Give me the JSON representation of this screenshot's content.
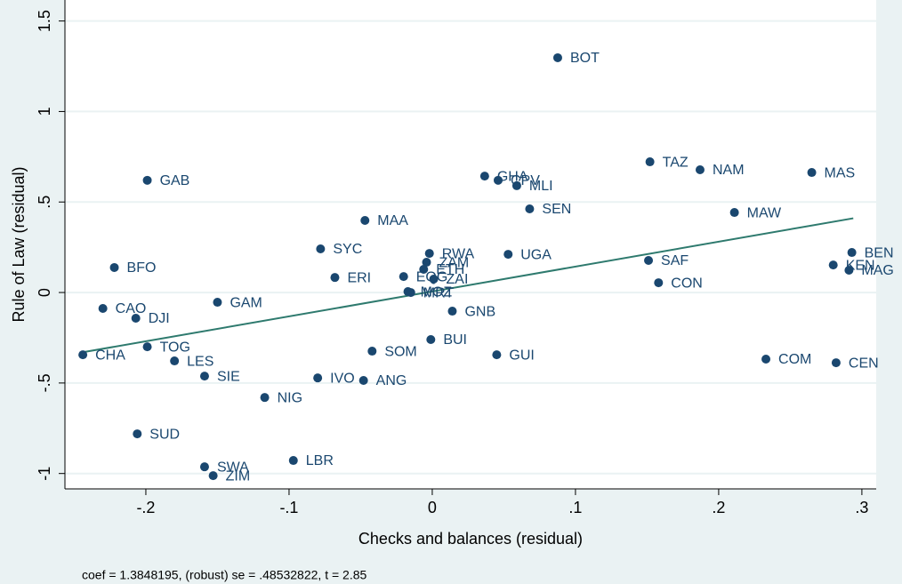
{
  "chart_data": {
    "type": "scatter",
    "x_label": "Checks and balances (residual)",
    "y_label": "Rule of Law (residual)",
    "note": "coef = 1.3848195, (robust) se = .48532822, t = 2.85",
    "color": "#1a476f",
    "fit_color": "#2e7a6e",
    "grid": true,
    "xlim": [
      -0.2565,
      0.31
    ],
    "ylim": [
      -1.085,
      1.616
    ],
    "xticks": [
      {
        "value": -0.2,
        "label": "-.2"
      },
      {
        "value": -0.1,
        "label": "-.1"
      },
      0,
      {
        "value": 0.1,
        "label": ".1"
      },
      {
        "value": 0.2,
        "label": ".2"
      },
      {
        "value": 0.3,
        "label": ".3"
      }
    ],
    "yticks": [
      -1,
      {
        "value": -0.5,
        "label": "-.5"
      },
      0,
      {
        "value": 0.5,
        "label": ".5"
      },
      1,
      1.5
    ],
    "points": {
      "labels": [
        "BOT",
        "GAB",
        "GHA",
        "CPV",
        "MLI",
        "TAZ",
        "NAM",
        "MAS",
        "MAW",
        "SEN",
        "MAA",
        "SYC",
        "RWA",
        "UGA",
        "BEN",
        "SAF",
        "ZAM",
        "ETH",
        "KEN",
        "MAG",
        "BFO",
        "ERI",
        "EQG",
        "ZAI",
        "CON",
        "MOZ",
        "MRT",
        "CAO",
        "DJI",
        "GAM",
        "GNB",
        "TOG",
        "CHA",
        "BUI",
        "SOM",
        "GUI",
        "COM",
        "CEN",
        "LES",
        "SIE",
        "IVO",
        "ANG",
        "NIG",
        "SUD",
        "LBR",
        "SWA",
        "ZIM"
      ],
      "x": [
        0.0876,
        -0.199,
        0.0366,
        0.046,
        0.059,
        0.152,
        0.187,
        0.265,
        0.211,
        0.068,
        -0.047,
        -0.078,
        -0.002,
        0.053,
        0.293,
        0.151,
        -0.004,
        -0.006,
        0.28,
        0.291,
        -0.222,
        -0.068,
        -0.02,
        0.001,
        0.158,
        -0.017,
        -0.015,
        -0.23,
        -0.207,
        -0.15,
        0.014,
        -0.199,
        -0.244,
        -0.001,
        -0.042,
        0.045,
        0.233,
        0.282,
        -0.18,
        -0.159,
        -0.08,
        -0.048,
        -0.117,
        -0.206,
        -0.097,
        -0.159,
        -0.153
      ],
      "y": [
        1.297,
        0.62,
        0.643,
        0.62,
        0.59,
        0.722,
        0.678,
        0.663,
        0.442,
        0.462,
        0.398,
        0.241,
        0.216,
        0.211,
        0.221,
        0.177,
        0.167,
        0.128,
        0.152,
        0.123,
        0.138,
        0.083,
        0.088,
        0.074,
        0.054,
        0.005,
        0.0,
        -0.088,
        -0.142,
        -0.054,
        -0.103,
        -0.3,
        -0.344,
        -0.26,
        -0.324,
        -0.344,
        -0.368,
        -0.388,
        -0.378,
        -0.462,
        -0.472,
        -0.486,
        -0.58,
        -0.781,
        -0.928,
        -0.963,
        -1.012
      ]
    },
    "fit": {
      "x": [
        -0.244,
        0.294
      ],
      "y": [
        -0.33,
        0.41
      ]
    }
  }
}
